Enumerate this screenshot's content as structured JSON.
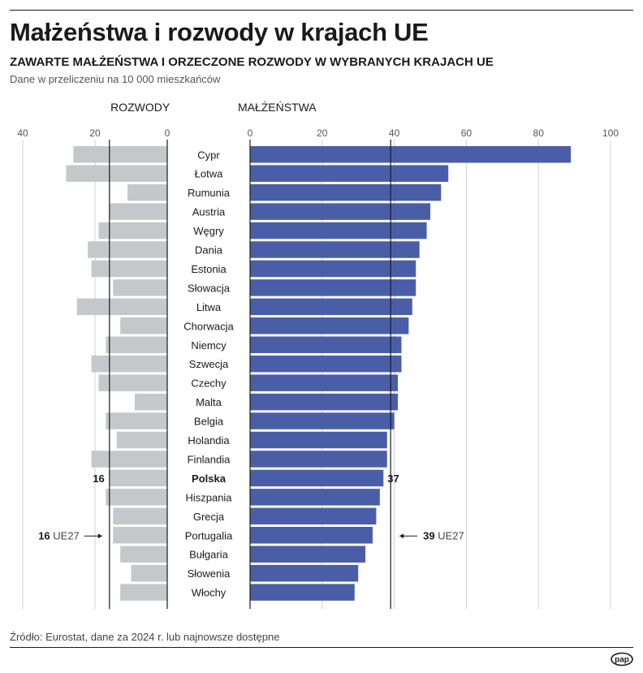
{
  "title": "Małżeństwa i rozwody w krajach UE",
  "subtitle": "ZAWARTE MAŁŻEŃSTWA I ORZECZONE ROZWODY W WYBRANYCH KRAJACH UE",
  "note": "Dane w przeliczeniu na 10 000 mieszkańców",
  "source": "Źródło: Eurostat, dane za 2024 r. lub najnowsze dostępne",
  "logo_text": "pap",
  "chart_data": {
    "type": "bar",
    "orientation": "horizontal",
    "layout": "back-to-back",
    "categories": [
      "Cypr",
      "Łotwa",
      "Rumunia",
      "Austria",
      "Węgry",
      "Dania",
      "Estonia",
      "Słowacja",
      "Litwa",
      "Chorwacja",
      "Niemcy",
      "Szwecja",
      "Czechy",
      "Malta",
      "Belgia",
      "Holandia",
      "Finlandia",
      "Polska",
      "Hiszpania",
      "Grecja",
      "Portugalia",
      "Bułgaria",
      "Słowenia",
      "Włochy"
    ],
    "highlight_category": "Polska",
    "series": [
      {
        "name": "ROZWODY",
        "color": "#c5c8ca",
        "xlim": [
          40,
          0
        ],
        "ticks": [
          40,
          20,
          0
        ],
        "values": [
          26,
          28,
          11,
          16,
          19,
          22,
          21,
          15,
          25,
          13,
          17,
          21,
          19,
          9,
          17,
          14,
          21,
          16,
          17,
          15,
          15,
          13,
          10,
          13
        ],
        "reference": {
          "value": 16,
          "label": "UE27"
        },
        "highlight_label": "16"
      },
      {
        "name": "MAŁŻEŃSTWA",
        "color": "#4a5ea8",
        "xlim": [
          0,
          100
        ],
        "ticks": [
          0,
          20,
          40,
          60,
          80,
          100
        ],
        "values": [
          89,
          55,
          53,
          50,
          49,
          47,
          46,
          46,
          45,
          44,
          42,
          42,
          41,
          41,
          40,
          38,
          38,
          37,
          36,
          35,
          34,
          32,
          30,
          29
        ],
        "reference": {
          "value": 39,
          "label": "UE27"
        },
        "highlight_label": "37"
      }
    ],
    "grid": true
  }
}
